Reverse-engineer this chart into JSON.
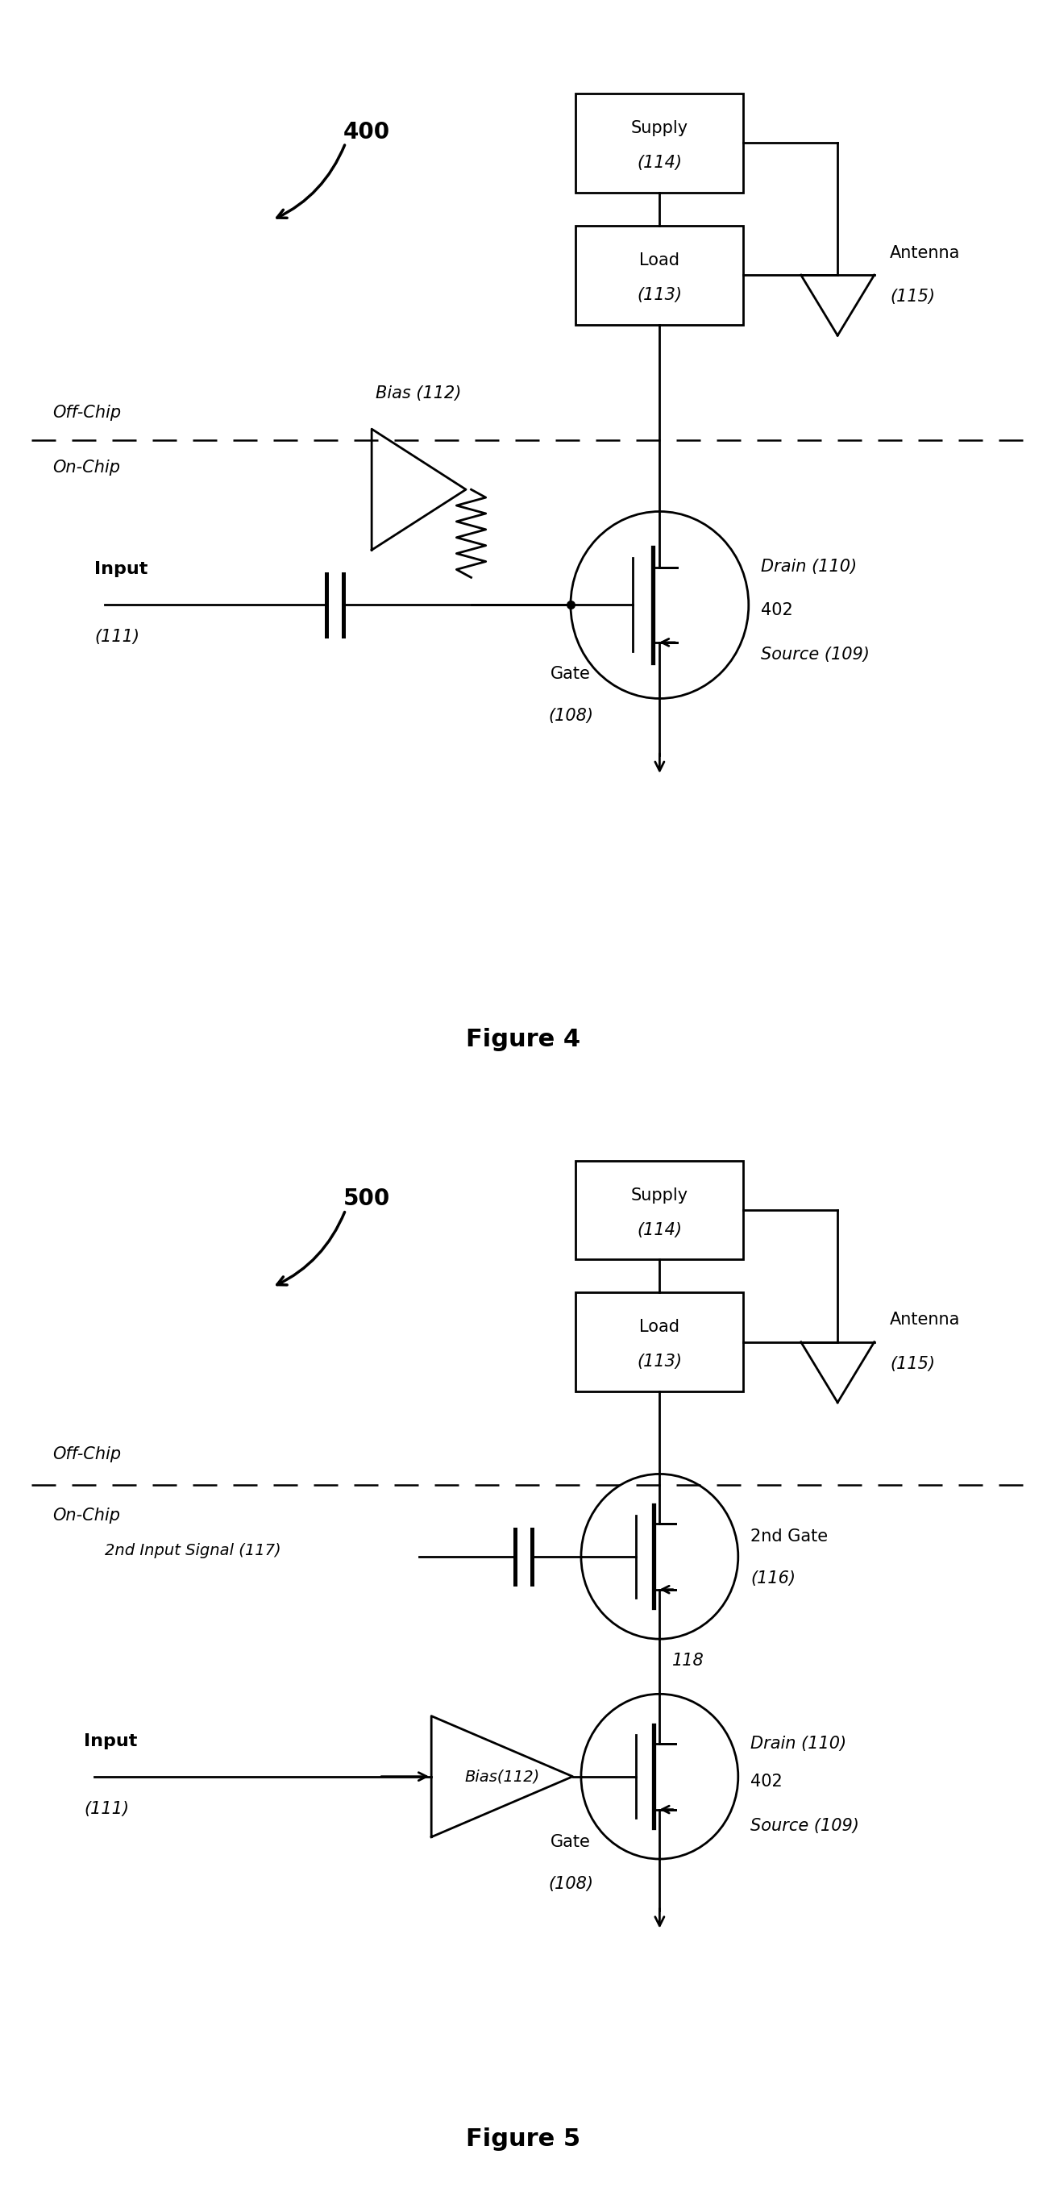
{
  "bg_color": "#ffffff",
  "fig4_title": "Figure 4",
  "fig5_title": "Figure 5",
  "label4": "400",
  "label5": "500",
  "supply_text_top": "Supply",
  "supply_text_bot": "(114)",
  "load_text_top": "Load",
  "load_text_bot": "(113)",
  "antenna_text": "Antenna",
  "antenna_ref": "(115)",
  "drain_text": "Drain (110)",
  "source_text": "Source (109)",
  "gate_text": "Gate",
  "gate_ref": "(108)",
  "transistor_ref": "402",
  "bias_text4": "Bias (112)",
  "input_text": "Input",
  "input_ref": "(111)",
  "offchip_text": "Off-Chip",
  "onchip_text": "On-Chip",
  "bias_text5": "Bias(112)",
  "gate2_text": "2nd Gate",
  "gate2_ref": "(116)",
  "input2_text": "2nd Input Signal (117)",
  "node118_text": "118"
}
